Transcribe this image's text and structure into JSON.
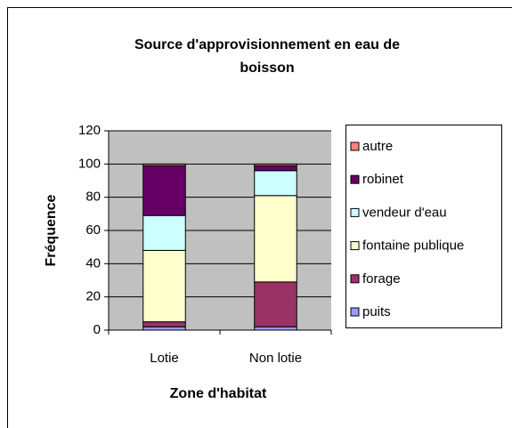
{
  "chart_data": {
    "type": "stacked_bar",
    "title": "Source d'approvisionnement en eau de boisson",
    "x_label": "Zone d'habitat",
    "y_label": "Fréquence",
    "categories": [
      "Lotie",
      "Non lotie"
    ],
    "series": [
      {
        "name": "puits",
        "color": "#9999ff",
        "values": [
          2,
          2
        ]
      },
      {
        "name": "forage",
        "color": "#993366",
        "values": [
          3,
          27
        ]
      },
      {
        "name": "fontaine publique",
        "color": "#ffffcc",
        "values": [
          43,
          52
        ]
      },
      {
        "name": "vendeur d'eau",
        "color": "#ccffff",
        "values": [
          21,
          15
        ]
      },
      {
        "name": "robinet",
        "color": "#660066",
        "values": [
          30,
          3
        ]
      },
      {
        "name": "autre",
        "color": "#ff8080",
        "values": [
          1,
          1
        ]
      }
    ],
    "ylim": [
      0,
      120
    ],
    "yticks": [
      0,
      20,
      40,
      60,
      80,
      100,
      120
    ],
    "grid": true,
    "plot_background": "#c0c0c0",
    "legend": "right"
  }
}
